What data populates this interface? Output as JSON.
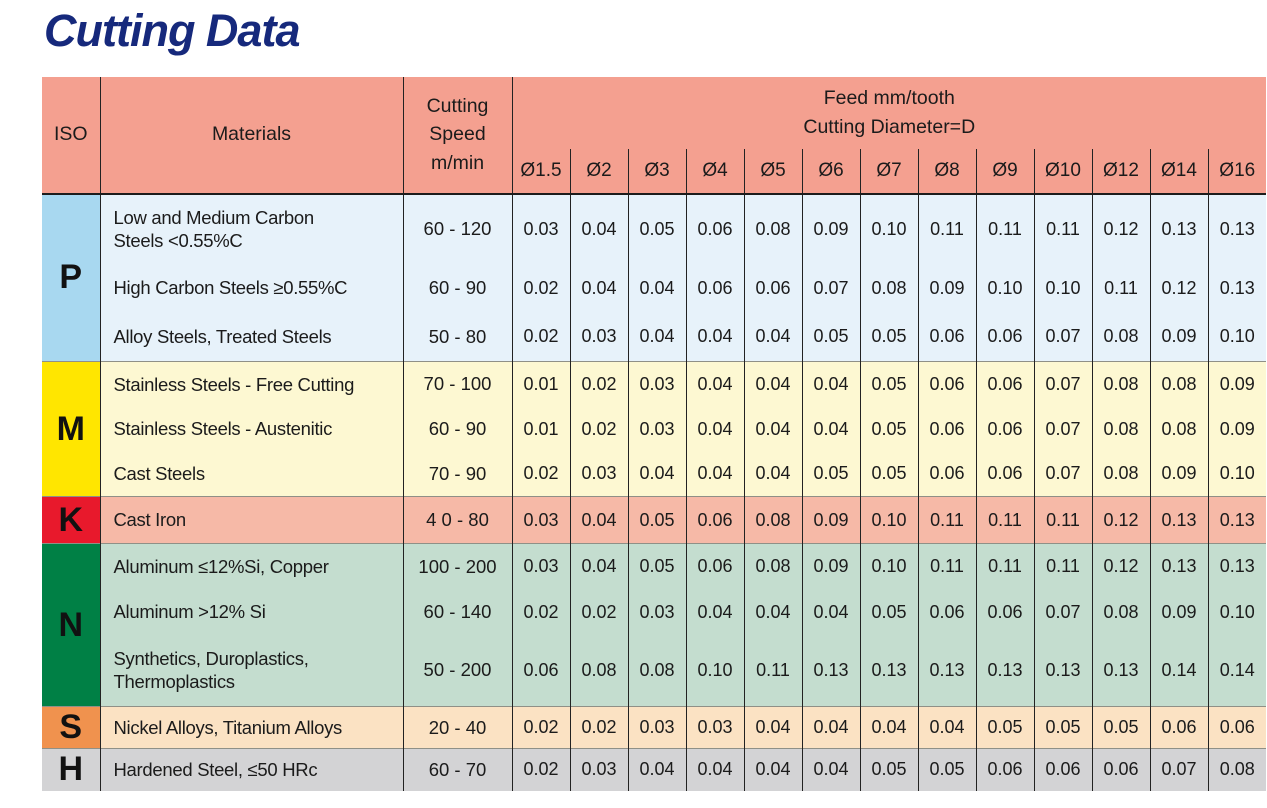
{
  "title": "Cutting Data",
  "colors": {
    "title": "#16297c",
    "header_bg": "#f4a090",
    "rule": "#222222"
  },
  "table": {
    "headers": {
      "iso": "ISO",
      "materials": "Materials",
      "cutting_speed": "Cutting\nSpeed\nm/min",
      "feed": "Feed mm/tooth\nCutting Diameter=D",
      "diameters": [
        "Ø1.5",
        "Ø2",
        "Ø3",
        "Ø4",
        "Ø5",
        "Ø6",
        "Ø7",
        "Ø8",
        "Ø9",
        "Ø10",
        "Ø12",
        "Ø14",
        "Ø16"
      ]
    },
    "sections": [
      {
        "iso": "P",
        "iso_bg": "#a8d8f0",
        "row_bg": "#e7f2fa",
        "rows": [
          {
            "material": "Low and Medium Carbon\nSteels <0.55%C",
            "speed": "60 - 120",
            "feeds": [
              "0.03",
              "0.04",
              "0.05",
              "0.06",
              "0.08",
              "0.09",
              "0.10",
              "0.11",
              "0.11",
              "0.11",
              "0.12",
              "0.13",
              "0.13"
            ]
          },
          {
            "material": "High Carbon Steels ≥0.55%C",
            "speed": "60 - 90",
            "feeds": [
              "0.02",
              "0.04",
              "0.04",
              "0.06",
              "0.06",
              "0.07",
              "0.08",
              "0.09",
              "0.10",
              "0.10",
              "0.11",
              "0.12",
              "0.13"
            ]
          },
          {
            "material": "Alloy Steels, Treated Steels",
            "speed": "50 - 80",
            "feeds": [
              "0.02",
              "0.03",
              "0.04",
              "0.04",
              "0.04",
              "0.05",
              "0.05",
              "0.06",
              "0.06",
              "0.07",
              "0.08",
              "0.09",
              "0.10"
            ]
          }
        ]
      },
      {
        "iso": "M",
        "iso_bg": "#ffe600",
        "row_bg": "#fdf8d2",
        "rows": [
          {
            "material": "Stainless Steels - Free Cutting",
            "speed": "70 - 100",
            "feeds": [
              "0.01",
              "0.02",
              "0.03",
              "0.04",
              "0.04",
              "0.04",
              "0.05",
              "0.06",
              "0.06",
              "0.07",
              "0.08",
              "0.08",
              "0.09"
            ]
          },
          {
            "material": "Stainless Steels - Austenitic",
            "speed": "60 - 90",
            "feeds": [
              "0.01",
              "0.02",
              "0.03",
              "0.04",
              "0.04",
              "0.04",
              "0.05",
              "0.06",
              "0.06",
              "0.07",
              "0.08",
              "0.08",
              "0.09"
            ]
          },
          {
            "material": "Cast Steels",
            "speed": "70 - 90",
            "feeds": [
              "0.02",
              "0.03",
              "0.04",
              "0.04",
              "0.04",
              "0.05",
              "0.05",
              "0.06",
              "0.06",
              "0.07",
              "0.08",
              "0.09",
              "0.10"
            ]
          }
        ]
      },
      {
        "iso": "K",
        "iso_bg": "#e8192c",
        "row_bg": "#f6b9a7",
        "rows": [
          {
            "material": "Cast Iron",
            "speed": "4 0 - 80",
            "feeds": [
              "0.03",
              "0.04",
              "0.05",
              "0.06",
              "0.08",
              "0.09",
              "0.10",
              "0.11",
              "0.11",
              "0.11",
              "0.12",
              "0.13",
              "0.13"
            ]
          }
        ]
      },
      {
        "iso": "N",
        "iso_bg": "#008045",
        "row_bg": "#c4ddcf",
        "rows": [
          {
            "material": "Aluminum ≤12%Si, Copper",
            "speed": "100 - 200",
            "feeds": [
              "0.03",
              "0.04",
              "0.05",
              "0.06",
              "0.08",
              "0.09",
              "0.10",
              "0.11",
              "0.11",
              "0.11",
              "0.12",
              "0.13",
              "0.13"
            ]
          },
          {
            "material": "Aluminum >12% Si",
            "speed": "60 - 140",
            "feeds": [
              "0.02",
              "0.02",
              "0.03",
              "0.04",
              "0.04",
              "0.04",
              "0.05",
              "0.06",
              "0.06",
              "0.07",
              "0.08",
              "0.09",
              "0.10"
            ]
          },
          {
            "material": "Synthetics, Duroplastics,\nThermoplastics",
            "speed": "50 - 200",
            "feeds": [
              "0.06",
              "0.08",
              "0.08",
              "0.10",
              "0.11",
              "0.13",
              "0.13",
              "0.13",
              "0.13",
              "0.13",
              "0.13",
              "0.14",
              "0.14"
            ]
          }
        ]
      },
      {
        "iso": "S",
        "iso_bg": "#f0924e",
        "row_bg": "#fbe2c3",
        "rows": [
          {
            "material": "Nickel Alloys, Titanium Alloys",
            "speed": "20 - 40",
            "feeds": [
              "0.02",
              "0.02",
              "0.03",
              "0.03",
              "0.04",
              "0.04",
              "0.04",
              "0.04",
              "0.05",
              "0.05",
              "0.05",
              "0.06",
              "0.06"
            ]
          }
        ]
      },
      {
        "iso": "H",
        "iso_bg": "#d3d3d5",
        "row_bg": "#d3d3d5",
        "rows": [
          {
            "material": "Hardened Steel, ≤50 HRc",
            "speed": "60 - 70",
            "feeds": [
              "0.02",
              "0.03",
              "0.04",
              "0.04",
              "0.04",
              "0.04",
              "0.05",
              "0.05",
              "0.06",
              "0.06",
              "0.06",
              "0.07",
              "0.08"
            ]
          }
        ]
      }
    ]
  }
}
